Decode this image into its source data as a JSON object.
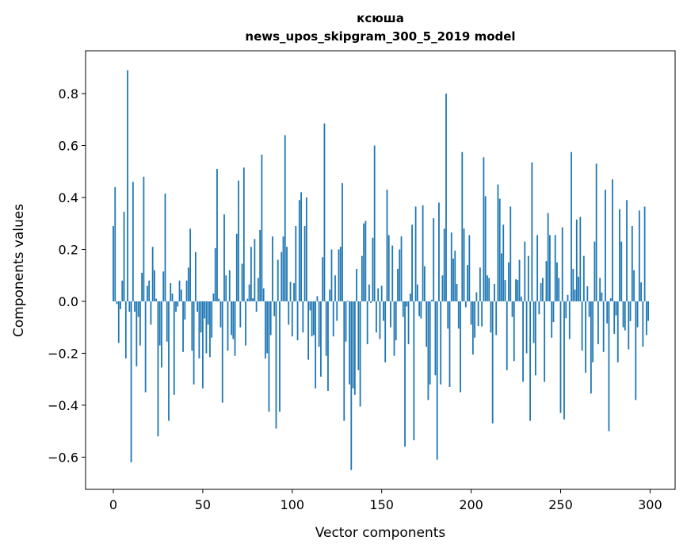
{
  "chart_data": {
    "type": "bar",
    "title": "ксюша",
    "subtitle": "news_upos_skipgram_300_5_2019 model",
    "xlabel": "Vector components",
    "ylabel": "Components values",
    "xlim": [
      -15.5,
      314
    ],
    "ylim": [
      -0.724,
      0.965
    ],
    "xticks": [
      0,
      50,
      100,
      150,
      200,
      250,
      300
    ],
    "xtick_labels": [
      "0",
      "50",
      "100",
      "150",
      "200",
      "250",
      "300"
    ],
    "yticks": [
      -0.6,
      -0.4,
      -0.2,
      0.0,
      0.2,
      0.4,
      0.6,
      0.8
    ],
    "ytick_labels": [
      "−0.6",
      "−0.4",
      "−0.2",
      "0.0",
      "0.2",
      "0.4",
      "0.6",
      "0.8"
    ],
    "grid": false,
    "bar_color": "#1f77b4",
    "values": [
      0.29,
      0.44,
      -0.01,
      -0.16,
      -0.03,
      0.08,
      0.345,
      -0.22,
      0.89,
      -0.04,
      -0.62,
      0.46,
      -0.04,
      -0.25,
      -0.06,
      -0.17,
      0.11,
      0.48,
      -0.35,
      0.06,
      0.08,
      -0.09,
      0.21,
      0.12,
      0.01,
      -0.52,
      -0.17,
      -0.255,
      0.115,
      0.415,
      -0.155,
      -0.46,
      0.07,
      0.03,
      -0.36,
      -0.04,
      -0.02,
      0.08,
      0.045,
      -0.195,
      -0.07,
      0.08,
      0.13,
      0.28,
      -0.19,
      -0.32,
      0.19,
      -0.04,
      -0.22,
      -0.12,
      -0.335,
      -0.066,
      -0.2,
      -0.09,
      -0.215,
      -0.14,
      0.03,
      0.205,
      0.51,
      0.01,
      -0.1,
      -0.39,
      0.335,
      0.1,
      -0.19,
      0.12,
      -0.13,
      -0.145,
      -0.21,
      0.26,
      0.465,
      -0.1,
      0.145,
      0.515,
      -0.17,
      0.01,
      0.065,
      0.21,
      0.012,
      0.24,
      -0.04,
      0.09,
      0.275,
      0.565,
      0.05,
      -0.22,
      -0.2,
      -0.425,
      -0.13,
      0.25,
      -0.057,
      -0.49,
      0.16,
      -0.425,
      0.19,
      0.25,
      0.64,
      0.21,
      -0.09,
      0.075,
      -0.135,
      0.07,
      0.29,
      -0.15,
      0.39,
      0.42,
      -0.12,
      0.29,
      0.4,
      -0.225,
      -0.035,
      -0.135,
      -0.13,
      -0.335,
      0.02,
      -0.175,
      -0.29,
      0.17,
      0.685,
      -0.21,
      -0.345,
      0.045,
      0.2,
      -0.135,
      0.1,
      -0.075,
      0.2,
      0.21,
      0.455,
      -0.46,
      -0.155,
      0.003,
      -0.32,
      -0.65,
      -0.335,
      -0.36,
      0.125,
      -0.265,
      -0.405,
      0.175,
      0.3,
      0.31,
      -0.165,
      0.065,
      -0.006,
      0.245,
      0.6,
      -0.12,
      0.05,
      -0.145,
      0.06,
      -0.075,
      -0.235,
      0.43,
      0.255,
      -0.1,
      0.215,
      -0.21,
      -0.15,
      0.125,
      0.2,
      0.25,
      -0.06,
      -0.56,
      -0.02,
      -0.165,
      0.03,
      0.295,
      -0.535,
      0.365,
      0.065,
      -0.057,
      -0.066,
      0.37,
      0.135,
      -0.175,
      -0.38,
      -0.32,
      0.006,
      0.32,
      -0.285,
      -0.61,
      0.38,
      -0.32,
      0.1,
      0.28,
      0.8,
      -0.105,
      -0.33,
      0.265,
      0.165,
      0.195,
      0.067,
      -0.105,
      -0.35,
      0.575,
      0.28,
      -0.023,
      0.14,
      0.255,
      -0.09,
      -0.205,
      -0.14,
      0.035,
      -0.095,
      0.13,
      -0.097,
      0.555,
      0.405,
      0.1,
      0.09,
      -0.12,
      -0.47,
      0.067,
      -0.13,
      0.45,
      0.395,
      0.185,
      0.295,
      0.082,
      -0.265,
      0.15,
      0.365,
      -0.06,
      -0.23,
      0.085,
      0.082,
      0.16,
      0.018,
      -0.31,
      0.23,
      -0.2,
      0.175,
      -0.46,
      0.535,
      -0.16,
      -0.285,
      0.255,
      -0.05,
      0.07,
      0.09,
      -0.31,
      0.155,
      0.34,
      0.255,
      -0.14,
      -0.08,
      0.255,
      0.15,
      0.09,
      -0.43,
      0.285,
      -0.455,
      -0.065,
      0.025,
      -0.145,
      0.575,
      0.125,
      0.045,
      0.315,
      0.095,
      0.325,
      -0.19,
      0.175,
      -0.275,
      0.058,
      -0.06,
      -0.355,
      -0.235,
      0.23,
      0.53,
      -0.165,
      0.09,
      0.034,
      -0.195,
      0.43,
      -0.085,
      -0.5,
      0.012,
      0.47,
      -0.125,
      -0.054,
      -0.235,
      0.355,
      0.23,
      -0.1,
      -0.112,
      0.39,
      -0.185,
      -0.076,
      0.29,
      0.12,
      -0.38,
      -0.1,
      0.35,
      0.073,
      -0.175,
      0.365,
      -0.13,
      -0.075
    ]
  }
}
